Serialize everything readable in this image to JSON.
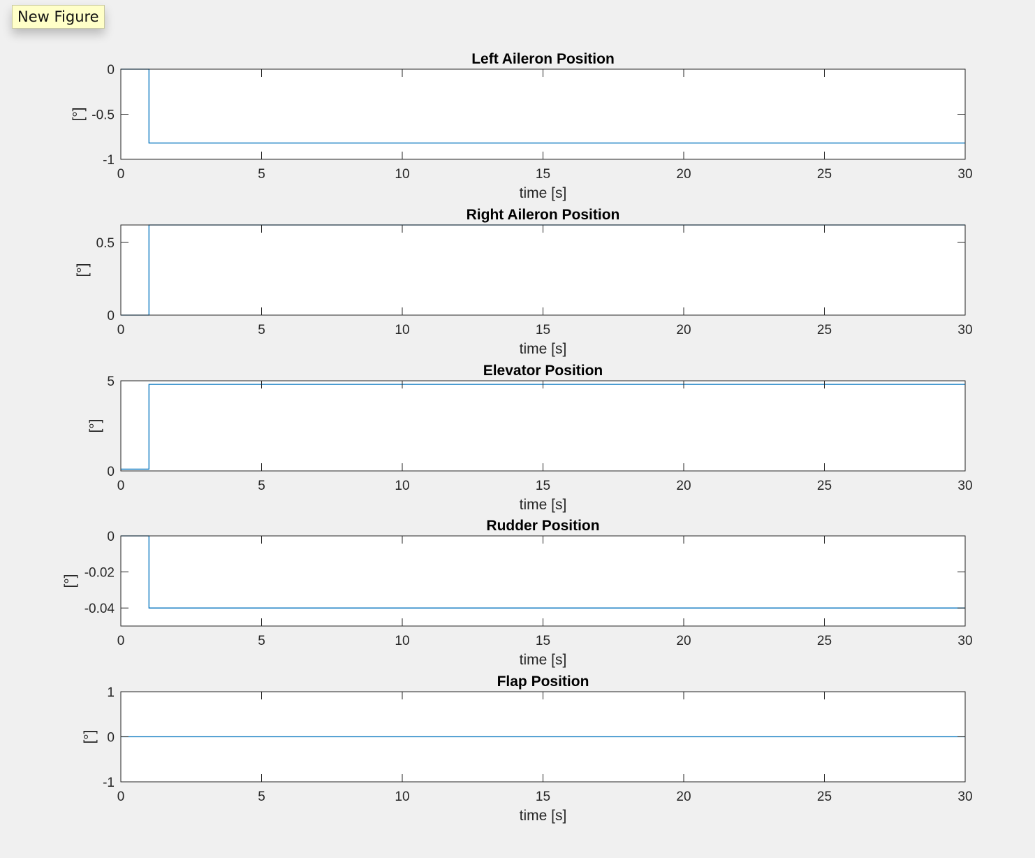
{
  "tooltip": {
    "text": "New Figure"
  },
  "colors": {
    "background": "#f0f0f0",
    "axes_background": "#ffffff",
    "axes_line": "#262626",
    "series": "#0072bd"
  },
  "chart_data": [
    {
      "type": "line",
      "title": "Left Aileron Position",
      "xlabel": "time [s]",
      "ylabel": "[°]",
      "xlim": [
        0,
        30
      ],
      "ylim": [
        -1,
        0
      ],
      "xticks": [
        0,
        5,
        10,
        15,
        20,
        25,
        30
      ],
      "xticklabels": [
        "0",
        "5",
        "10",
        "15",
        "20",
        "25",
        "30"
      ],
      "yticks": [
        -1,
        -0.5,
        0
      ],
      "yticklabels": [
        "-1",
        "-0.5",
        "0"
      ],
      "grid": false,
      "series": [
        {
          "x": [
            0,
            1,
            1,
            30
          ],
          "y": [
            0,
            0,
            -0.82,
            -0.82
          ]
        }
      ]
    },
    {
      "type": "line",
      "title": "Right Aileron Position",
      "xlabel": "time [s]",
      "ylabel": "[°]",
      "xlim": [
        0,
        30
      ],
      "ylim": [
        0,
        0.62
      ],
      "xticks": [
        0,
        5,
        10,
        15,
        20,
        25,
        30
      ],
      "xticklabels": [
        "0",
        "5",
        "10",
        "15",
        "20",
        "25",
        "30"
      ],
      "yticks": [
        0,
        0.5
      ],
      "yticklabels": [
        "0",
        "0.5"
      ],
      "grid": false,
      "series": [
        {
          "x": [
            0,
            1,
            1,
            30
          ],
          "y": [
            0,
            0,
            0.62,
            0.62
          ]
        }
      ]
    },
    {
      "type": "line",
      "title": "Elevator Position",
      "xlabel": "time [s]",
      "ylabel": "[°]",
      "xlim": [
        0,
        30
      ],
      "ylim": [
        0,
        5
      ],
      "xticks": [
        0,
        5,
        10,
        15,
        20,
        25,
        30
      ],
      "xticklabels": [
        "0",
        "5",
        "10",
        "15",
        "20",
        "25",
        "30"
      ],
      "yticks": [
        0,
        5
      ],
      "yticklabels": [
        "0",
        "5"
      ],
      "grid": false,
      "series": [
        {
          "x": [
            0,
            1,
            1,
            30
          ],
          "y": [
            0.1,
            0.1,
            4.8,
            4.8
          ]
        }
      ]
    },
    {
      "type": "line",
      "title": "Rudder Position",
      "xlabel": "time [s]",
      "ylabel": "[°]",
      "xlim": [
        0,
        30
      ],
      "ylim": [
        -0.05,
        0
      ],
      "xticks": [
        0,
        5,
        10,
        15,
        20,
        25,
        30
      ],
      "xticklabels": [
        "0",
        "5",
        "10",
        "15",
        "20",
        "25",
        "30"
      ],
      "yticks": [
        -0.04,
        -0.02,
        0
      ],
      "yticklabels": [
        "-0.04",
        "-0.02",
        "0"
      ],
      "grid": false,
      "series": [
        {
          "x": [
            0,
            1,
            1,
            30
          ],
          "y": [
            0,
            0,
            -0.04,
            -0.04
          ]
        }
      ]
    },
    {
      "type": "line",
      "title": "Flap Position",
      "xlabel": "time [s]",
      "ylabel": "[°]",
      "xlim": [
        0,
        30
      ],
      "ylim": [
        -1,
        1
      ],
      "xticks": [
        0,
        5,
        10,
        15,
        20,
        25,
        30
      ],
      "xticklabels": [
        "0",
        "5",
        "10",
        "15",
        "20",
        "25",
        "30"
      ],
      "yticks": [
        -1,
        0,
        1
      ],
      "yticklabels": [
        "-1",
        "0",
        "1"
      ],
      "grid": false,
      "series": [
        {
          "x": [
            0,
            30
          ],
          "y": [
            0,
            0
          ]
        }
      ]
    }
  ]
}
